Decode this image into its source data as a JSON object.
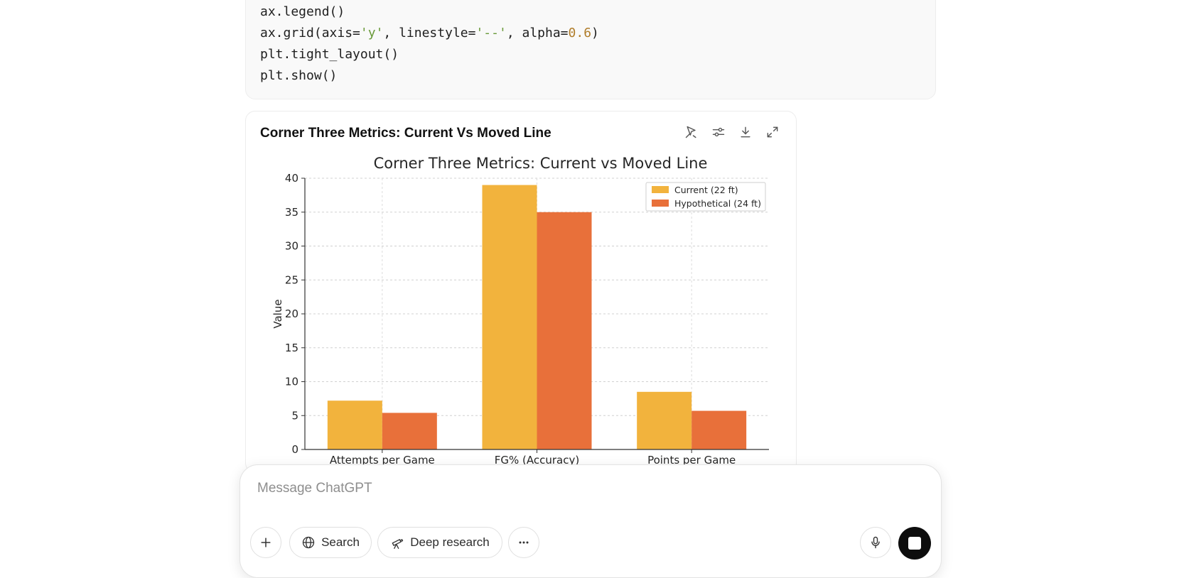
{
  "code": {
    "lines": [
      {
        "parts": [
          {
            "t": "ax.legend()",
            "k": "plain"
          }
        ]
      },
      {
        "parts": [
          {
            "t": "ax.grid(axis=",
            "k": "plain"
          },
          {
            "t": "'y'",
            "k": "str"
          },
          {
            "t": ", linestyle=",
            "k": "plain"
          },
          {
            "t": "'--'",
            "k": "str"
          },
          {
            "t": ", alpha=",
            "k": "plain"
          },
          {
            "t": "0.6",
            "k": "num"
          },
          {
            "t": ")",
            "k": "plain"
          }
        ]
      },
      {
        "parts": [
          {
            "t": "plt.tight_layout()",
            "k": "plain"
          }
        ]
      },
      {
        "parts": [
          {
            "t": "plt.show()",
            "k": "plain"
          }
        ]
      }
    ]
  },
  "chart_card": {
    "title": "Corner Three Metrics: Current Vs Moved Line",
    "icons": [
      "interactive-chart-icon",
      "sliders-icon",
      "download-icon",
      "expand-icon"
    ]
  },
  "chart_data": {
    "type": "bar",
    "title": "Corner Three Metrics: Current vs Moved Line",
    "xlabel": "",
    "ylabel": "Value",
    "categories": [
      "Attempts per Game",
      "FG% (Accuracy)",
      "Points per Game"
    ],
    "series": [
      {
        "name": "Current (22 ft)",
        "values": [
          7.2,
          39,
          8.5
        ],
        "color": "#f2b33d"
      },
      {
        "name": "Hypothetical (24 ft)",
        "values": [
          5.4,
          35,
          5.7
        ],
        "color": "#e8703a"
      }
    ],
    "ylim": [
      0,
      40
    ],
    "yticks": [
      0,
      5,
      10,
      15,
      20,
      25,
      30,
      35,
      40
    ],
    "grid": true,
    "legend": "top-right"
  },
  "composer": {
    "placeholder": "Message ChatGPT",
    "search_label": "Search",
    "deep_research_label": "Deep research"
  }
}
